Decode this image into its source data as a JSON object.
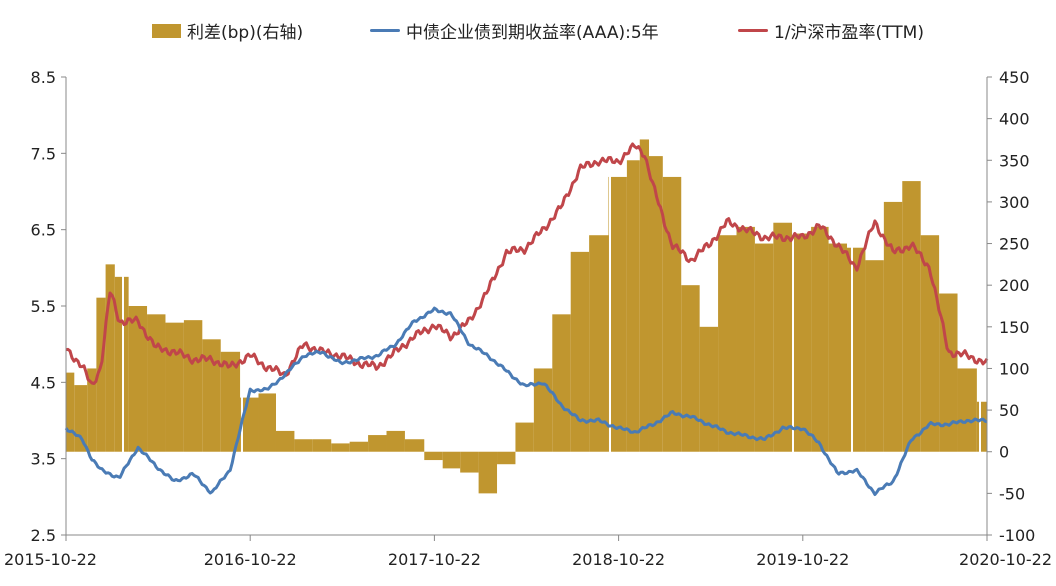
{
  "chart_data": {
    "type": "bar+line",
    "legend": [
      {
        "name": "利差(bp)(右轴)",
        "kind": "bar",
        "color": "#C0962F"
      },
      {
        "name": "中债企业债到期收益率(AAA):5年",
        "kind": "line",
        "color": "#4A7BB5"
      },
      {
        "name": "1/沪深市盈率(TTM)",
        "kind": "line",
        "color": "#C0464A"
      }
    ],
    "legend_position": "top",
    "x_ticks": [
      "2015-10-22",
      "2016-10-22",
      "2017-10-22",
      "2018-10-22",
      "2019-10-22",
      "2020-10-22"
    ],
    "x_range": [
      2015.81,
      2020.81
    ],
    "y_left": {
      "ticks": [
        "2.5",
        "3.5",
        "4.5",
        "5.5",
        "6.5",
        "7.5",
        "8.5"
      ],
      "range": [
        2.5,
        8.5
      ]
    },
    "y_right": {
      "ticks": [
        "-100",
        "-50",
        "0",
        "50",
        "100",
        "150",
        "200",
        "250",
        "300",
        "350",
        "400",
        "450"
      ],
      "range": [
        -100,
        450
      ]
    },
    "grid": false,
    "series": [
      {
        "name": "利差(bp)(右轴)",
        "axis": "right",
        "type": "bar",
        "color": "#C0962F",
        "x": [
          2015.81,
          2015.9,
          2015.95,
          2016.0,
          2016.05,
          2016.1,
          2016.2,
          2016.3,
          2016.4,
          2016.5,
          2016.6,
          2016.7,
          2016.81,
          2016.9,
          2017.0,
          2017.1,
          2017.2,
          2017.3,
          2017.4,
          2017.5,
          2017.6,
          2017.7,
          2017.81,
          2017.9,
          2018.0,
          2018.1,
          2018.2,
          2018.3,
          2018.4,
          2018.5,
          2018.6,
          2018.7,
          2018.81,
          2018.9,
          2018.95,
          2019.0,
          2019.1,
          2019.2,
          2019.3,
          2019.4,
          2019.5,
          2019.6,
          2019.7,
          2019.81,
          2019.9,
          2020.0,
          2020.1,
          2020.2,
          2020.3,
          2020.4,
          2020.5,
          2020.6,
          2020.7,
          2020.81
        ],
        "values": [
          95,
          80,
          100,
          185,
          225,
          210,
          175,
          165,
          155,
          158,
          135,
          120,
          65,
          70,
          25,
          15,
          15,
          10,
          12,
          20,
          25,
          15,
          -10,
          -20,
          -25,
          -50,
          -15,
          35,
          100,
          165,
          240,
          260,
          330,
          350,
          375,
          355,
          330,
          200,
          150,
          260,
          270,
          250,
          275,
          262,
          270,
          250,
          245,
          230,
          300,
          325,
          260,
          190,
          100,
          60
        ]
      },
      {
        "name": "中债企业债到期收益率(AAA):5年",
        "axis": "left",
        "type": "line",
        "color": "#4A7BB5",
        "x": [
          2015.81,
          2015.9,
          2015.95,
          2016.0,
          2016.05,
          2016.1,
          2016.2,
          2016.3,
          2016.4,
          2016.5,
          2016.6,
          2016.7,
          2016.81,
          2016.9,
          2017.0,
          2017.1,
          2017.2,
          2017.3,
          2017.4,
          2017.5,
          2017.6,
          2017.7,
          2017.81,
          2017.9,
          2018.0,
          2018.1,
          2018.2,
          2018.3,
          2018.4,
          2018.5,
          2018.6,
          2018.7,
          2018.81,
          2018.9,
          2018.95,
          2019.0,
          2019.1,
          2019.2,
          2019.3,
          2019.4,
          2019.5,
          2019.6,
          2019.7,
          2019.81,
          2019.9,
          2020.0,
          2020.1,
          2020.2,
          2020.3,
          2020.4,
          2020.5,
          2020.6,
          2020.7,
          2020.81
        ],
        "values": [
          3.9,
          3.75,
          3.5,
          3.35,
          3.3,
          3.25,
          3.65,
          3.4,
          3.2,
          3.3,
          3.05,
          3.35,
          4.4,
          4.4,
          4.6,
          4.85,
          4.9,
          4.75,
          4.8,
          4.85,
          5.0,
          5.3,
          5.45,
          5.4,
          5.0,
          4.85,
          4.65,
          4.45,
          4.5,
          4.2,
          4.0,
          4.0,
          3.9,
          3.85,
          3.9,
          3.95,
          4.1,
          4.05,
          3.95,
          3.85,
          3.8,
          3.75,
          3.9,
          3.9,
          3.7,
          3.3,
          3.35,
          3.05,
          3.2,
          3.75,
          3.95,
          3.95,
          4.0,
          4.0
        ]
      },
      {
        "name": "1/沪深市盈率(TTM)",
        "axis": "left",
        "type": "line",
        "color": "#C0464A",
        "x": [
          2015.81,
          2015.9,
          2015.95,
          2016.0,
          2016.05,
          2016.1,
          2016.2,
          2016.3,
          2016.4,
          2016.5,
          2016.6,
          2016.7,
          2016.81,
          2016.9,
          2017.0,
          2017.1,
          2017.2,
          2017.3,
          2017.4,
          2017.5,
          2017.6,
          2017.7,
          2017.81,
          2017.9,
          2018.0,
          2018.1,
          2018.2,
          2018.3,
          2018.4,
          2018.5,
          2018.6,
          2018.7,
          2018.81,
          2018.9,
          2018.95,
          2019.0,
          2019.1,
          2019.2,
          2019.3,
          2019.4,
          2019.5,
          2019.6,
          2019.7,
          2019.81,
          2019.9,
          2020.0,
          2020.1,
          2020.2,
          2020.3,
          2020.4,
          2020.5,
          2020.6,
          2020.7,
          2020.81
        ],
        "values": [
          4.95,
          4.7,
          4.45,
          4.7,
          5.7,
          5.3,
          5.3,
          4.95,
          4.9,
          4.8,
          4.8,
          4.7,
          4.85,
          4.7,
          4.6,
          5.0,
          4.9,
          4.85,
          4.75,
          4.7,
          4.9,
          5.1,
          5.25,
          5.1,
          5.3,
          5.7,
          6.2,
          6.25,
          6.5,
          6.8,
          7.3,
          7.4,
          7.4,
          7.6,
          7.5,
          7.05,
          6.3,
          6.1,
          6.3,
          6.6,
          6.5,
          6.4,
          6.4,
          6.4,
          6.55,
          6.3,
          6.0,
          6.6,
          6.2,
          6.3,
          6.0,
          4.9,
          4.85,
          4.75
        ]
      }
    ]
  }
}
